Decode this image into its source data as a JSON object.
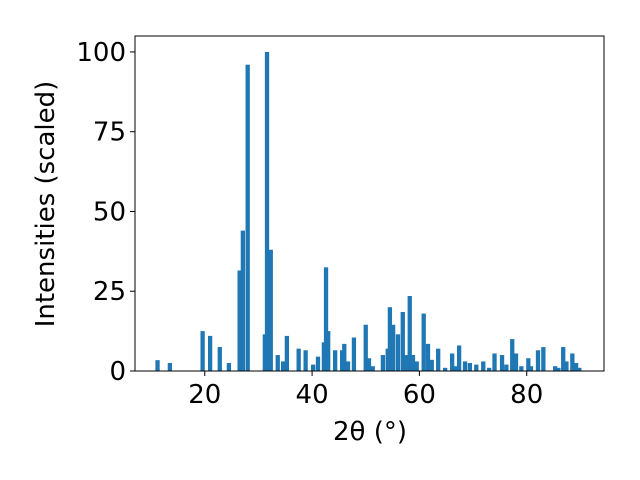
{
  "chart_data": {
    "type": "bar",
    "xlabel": "2θ (°)",
    "ylabel": "Intensities (scaled)",
    "color": "#1f77b4",
    "x": [
      11.2,
      13.5,
      19.6,
      21.0,
      22.8,
      24.5,
      26.5,
      27.1,
      28.0,
      31.2,
      31.6,
      32.3,
      33.6,
      34.6,
      35.3,
      37.5,
      38.8,
      40.2,
      41.1,
      42.2,
      42.6,
      43.0,
      44.3,
      45.6,
      46.0,
      46.7,
      47.8,
      50.0,
      50.6,
      51.3,
      53.2,
      54.1,
      54.5,
      55.1,
      56.0,
      56.9,
      57.5,
      58.2,
      58.8,
      59.5,
      60.8,
      61.6,
      62.3,
      63.5,
      64.8,
      66.1,
      66.7,
      67.4,
      68.5,
      69.4,
      70.6,
      71.9,
      73.0,
      74.0,
      75.4,
      76.2,
      77.3,
      78.0,
      79.0,
      80.3,
      80.8,
      82.1,
      83.1,
      85.3,
      85.9,
      86.8,
      87.4,
      88.5,
      89.2,
      89.8
    ],
    "values": [
      3.4,
      2.5,
      12.5,
      11,
      7.5,
      2.5,
      31.5,
      44,
      96,
      11.5,
      100,
      38,
      5,
      3,
      11,
      7,
      6.5,
      2,
      4.5,
      9,
      32.5,
      12.5,
      6.5,
      6.5,
      8.5,
      3,
      10.5,
      14.5,
      4,
      1.5,
      5,
      7,
      20,
      14.5,
      11.5,
      18.5,
      5,
      23.5,
      5,
      3,
      18,
      8.5,
      3.5,
      7,
      1,
      5.5,
      1.5,
      8,
      3,
      2.5,
      2,
      3,
      1,
      5.5,
      5,
      2,
      10,
      5.5,
      1.5,
      4,
      1.5,
      6.5,
      7.5,
      1.5,
      1,
      7.5,
      3,
      5.5,
      2.5,
      1
    ],
    "xlim": [
      7,
      94.4
    ],
    "ylim": [
      0,
      105
    ],
    "xticks": [
      20,
      40,
      60,
      80
    ],
    "yticks": [
      0,
      25,
      50,
      75,
      100
    ]
  }
}
